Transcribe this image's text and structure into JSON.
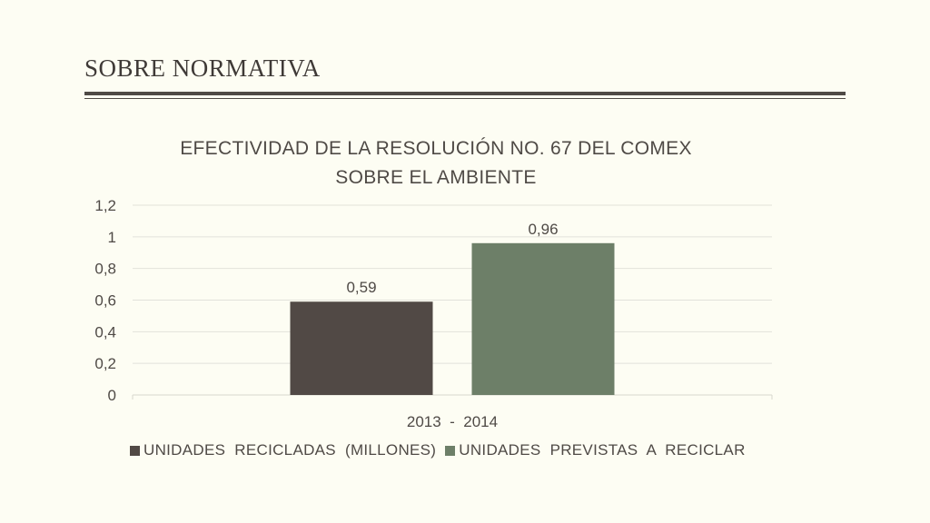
{
  "slide": {
    "title": "SOBRE NORMATIVA"
  },
  "colors": {
    "background": "#fdfdf3",
    "text": "#4f4a46",
    "series1": "#514945",
    "series2": "#6d7f68",
    "grid": "#e2e2da"
  },
  "chart_data": {
    "type": "bar",
    "title_lines": [
      "EFECTIVIDAD DE LA RESOLUCIÓN NO. 67 DEL COMEX",
      "SOBRE EL AMBIENTE"
    ],
    "categories": [
      "2013  -  2014"
    ],
    "series": [
      {
        "name": "UNIDADES  RECICLADAS  (MILLONES)",
        "values": [
          0.59
        ],
        "labels": [
          "0,59"
        ]
      },
      {
        "name": "UNIDADES  PREVISTAS  A  RECICLAR",
        "values": [
          0.96
        ],
        "labels": [
          "0,96"
        ]
      }
    ],
    "ylim": [
      0,
      1.2
    ],
    "yticks": [
      0,
      0.2,
      0.4,
      0.6,
      0.8,
      1,
      1.2
    ],
    "ytick_labels": [
      "0",
      "0,2",
      "0,4",
      "0,6",
      "0,8",
      "1",
      "1,2"
    ],
    "grid": true,
    "legend_position": "bottom"
  }
}
